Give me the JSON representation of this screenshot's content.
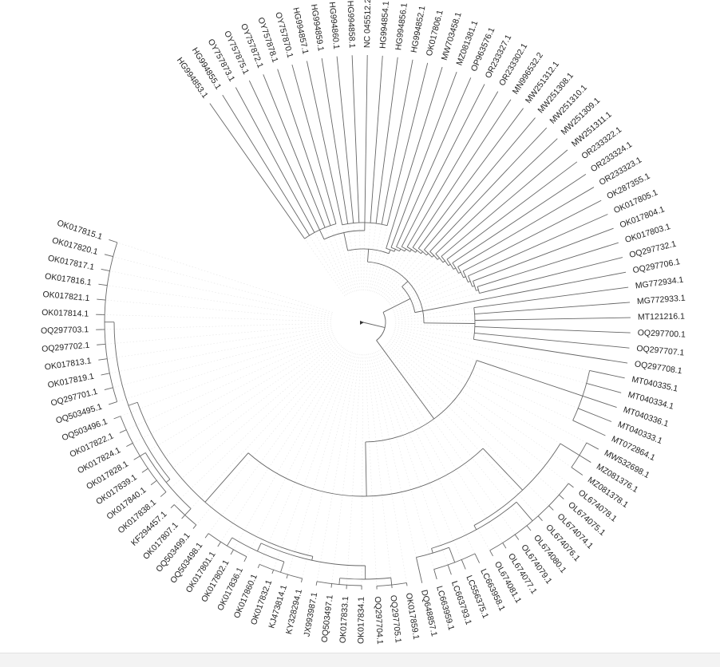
{
  "tree": {
    "line_color": "#666666",
    "guide_color": "#e4e4e4",
    "label_color": "#222222",
    "tips": [
      "HG994853.1",
      "HG994855.1",
      "OY757873.1",
      "OY757875.1",
      "OY757872.1",
      "OY757878.1",
      "OY757870.1",
      "HG994857.1",
      "HG994859.1",
      "HG994860.1",
      "HG994858.1",
      "NC 045512.2",
      "HG994854.1",
      "HG994856.1",
      "HG994852.1",
      "OK017806.1",
      "MW703458.1",
      "MZ081381.1",
      "OP963576.1",
      "OR233327.1",
      "OR233302.1",
      "MN996532.2",
      "MW251312.1",
      "MW251308.1",
      "MW251310.1",
      "MW251309.1",
      "MW251311.1",
      "OR233322.1",
      "OR233324.1",
      "OR233323.1",
      "OK287355.1",
      "OK017805.1",
      "OK017804.1",
      "OK017803.1",
      "OQ297732.1",
      "OQ297706.1",
      "MG772934.1",
      "MG772933.1",
      "MT121216.1",
      "OQ297700.1",
      "OQ297707.1",
      "OQ297708.1",
      "MT040335.1",
      "MT040334.1",
      "MT040336.1",
      "MT040333.1",
      "MT072864.1",
      "MW532698.1",
      "MZ081376.1",
      "MZ081378.1",
      "OL674078.1",
      "OL674075.1",
      "OL674074.1",
      "OL674076.1",
      "OL674080.1",
      "OL674079.1",
      "OL674077.1",
      "OL674081.1",
      "LC663958.1",
      "LC556375.1",
      "LC663793.1",
      "LC663959.1",
      "DQ648857.1",
      "OK017859.1",
      "OQ297705.1",
      "OQ297704.1",
      "OK017834.1",
      "OK017833.1",
      "OQ503497.1",
      "JX993987.1",
      "KY328294.1",
      "KJ473814.1",
      "OK017832.1",
      "OK017860.1",
      "OK017836.1",
      "OK017802.1",
      "OK017801.1",
      "OQ503498.1",
      "OQ503499.1",
      "OK017807.1",
      "KF294457.1",
      "OK017838.1",
      "OK017840.1",
      "OK017839.1",
      "OK017828.1",
      "OK017824.1",
      "OK017822.1",
      "OQ503496.1",
      "OQ503495.1",
      "OQ297701.1",
      "OK017819.1",
      "OK017813.1",
      "OQ297702.1",
      "OQ297703.1",
      "OK017814.1",
      "OK017821.1",
      "OK017816.1",
      "OK017817.1",
      "OK017820.1",
      "OK017815.1"
    ]
  }
}
